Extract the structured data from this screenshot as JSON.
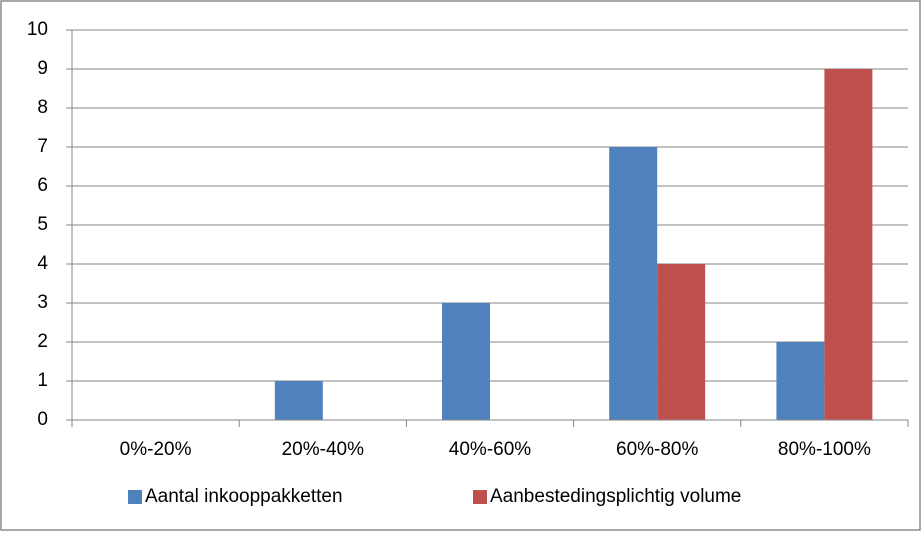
{
  "chart_data": {
    "type": "bar",
    "categories": [
      "0%-20%",
      "20%-40%",
      "40%-60%",
      "60%-80%",
      "80%-100%"
    ],
    "series": [
      {
        "name": "Aantal inkooppakketten",
        "color": "#4f81bd",
        "values": [
          0,
          1,
          3,
          7,
          2
        ]
      },
      {
        "name": "Aanbestedingsplichtig volume",
        "color": "#c0504d",
        "values": [
          0,
          0,
          0,
          4,
          9
        ]
      }
    ],
    "ylim": [
      0,
      10
    ],
    "yticks": [
      0,
      1,
      2,
      3,
      4,
      5,
      6,
      7,
      8,
      9,
      10
    ],
    "grid": true,
    "legend": "bottom"
  }
}
